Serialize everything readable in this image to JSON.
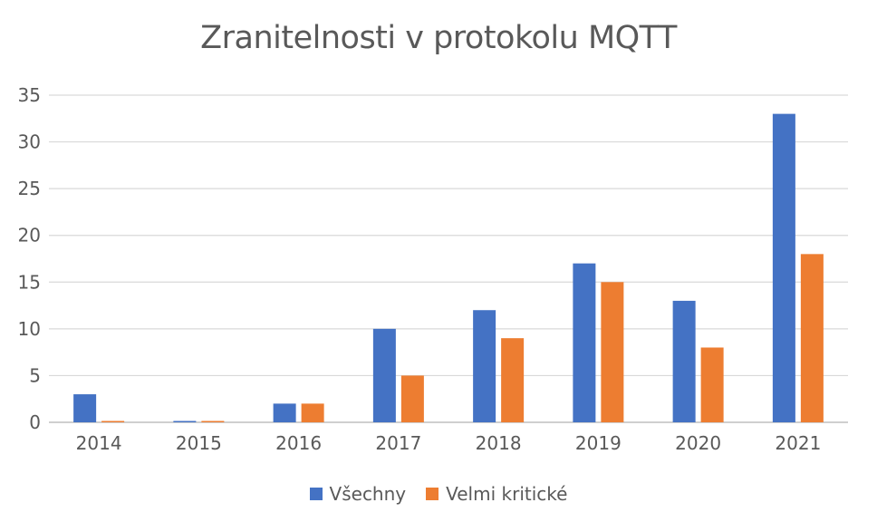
{
  "chart_data": {
    "type": "bar",
    "title": "Zranitelnosti v protokolu MQTT",
    "xlabel": "",
    "ylabel": "",
    "categories": [
      "2014",
      "2015",
      "2016",
      "2017",
      "2018",
      "2019",
      "2020",
      "2021"
    ],
    "series": [
      {
        "name": "Všechny",
        "color": "#4472C4",
        "values": [
          3,
          0,
          2,
          10,
          12,
          17,
          13,
          33
        ]
      },
      {
        "name": "Velmi kritické",
        "color": "#ED7D31",
        "values": [
          0,
          0,
          2,
          5,
          9,
          15,
          8,
          18
        ]
      }
    ],
    "ylim": [
      0,
      35
    ],
    "yticks": [
      "0",
      "5",
      "10",
      "15",
      "20",
      "25",
      "30",
      "35"
    ],
    "grid": true,
    "legend_position": "bottom"
  }
}
